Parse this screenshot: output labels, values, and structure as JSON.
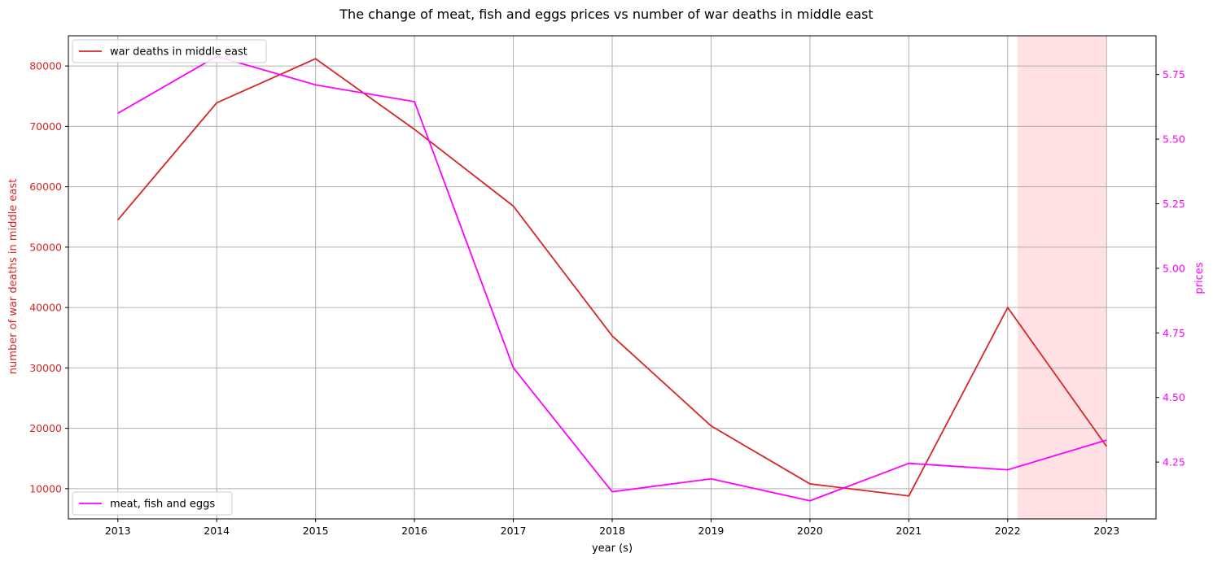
{
  "chart_data": {
    "type": "line",
    "title": "The change of meat, fish and eggs prices vs number of war deaths in middle east",
    "xlabel": "year (s)",
    "ylabel_left": "number of war deaths in middle east",
    "ylabel_right": "prices",
    "x": [
      "2013",
      "2014",
      "2015",
      "2016",
      "2017",
      "2018",
      "2019",
      "2020",
      "2021",
      "2022",
      "2023"
    ],
    "x_ticks": [
      "2013",
      "2014",
      "2015",
      "2016",
      "2017",
      "2018",
      "2019",
      "2020",
      "2021",
      "2022",
      "2023"
    ],
    "xlim": [
      2012.5,
      2023.5
    ],
    "ylim_left": [
      5000,
      85000
    ],
    "ylim_right": [
      4.03,
      5.9
    ],
    "yticks_left": [
      "10000",
      "20000",
      "30000",
      "40000",
      "50000",
      "60000",
      "70000",
      "80000"
    ],
    "yticks_right": [
      "4.25",
      "4.50",
      "4.75",
      "5.00",
      "5.25",
      "5.50",
      "5.75"
    ],
    "grid": true,
    "highlight_span": [
      2022.1,
      2023.0
    ],
    "series": [
      {
        "name": "war deaths in middle east",
        "axis": "left",
        "color": "#d62728",
        "values": [
          54500,
          73900,
          81200,
          69500,
          56800,
          35300,
          20400,
          10800,
          8800,
          40000,
          17000
        ]
      },
      {
        "name": "meat, fish and eggs",
        "axis": "right",
        "color": "#ff00ff",
        "values": [
          5.6,
          5.82,
          5.71,
          5.645,
          4.615,
          4.135,
          4.185,
          4.1,
          4.245,
          4.22,
          4.335
        ]
      }
    ],
    "legends": [
      {
        "series": 0,
        "placement": "upper-left"
      },
      {
        "series": 1,
        "placement": "lower-left"
      }
    ],
    "colors": {
      "left_axis": "#d62728",
      "right_axis": "#ff00ff",
      "grid": "#b0b0b0",
      "highlight": "#ffe0e3",
      "frame": "#000000"
    }
  }
}
